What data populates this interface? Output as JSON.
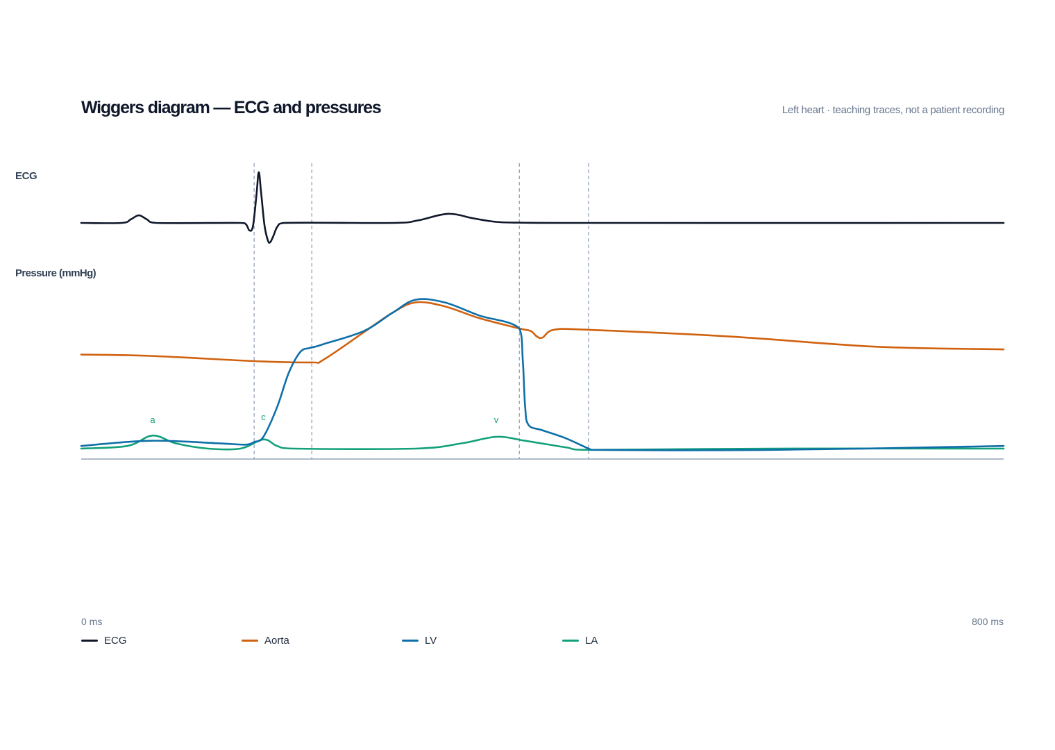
{
  "header": {
    "title": "Wiggers diagram — ECG and pressures",
    "subtitle": "Left heart · teaching traces, not a patient recording"
  },
  "chart_data": {
    "type": "line",
    "panels": [
      {
        "name": "ecg",
        "label": "ECG"
      },
      {
        "name": "pressure",
        "label": "Pressure (mmHg)"
      }
    ],
    "x_unit": "ms",
    "xlim": [
      0,
      800
    ],
    "x_tick_labels": [
      "0 ms",
      "800 ms"
    ],
    "grid": false,
    "legend_position": "bottom-left",
    "phase_markers_ms": [
      150,
      200,
      380,
      440
    ],
    "wave_annotations": [
      {
        "label": "a",
        "x": 62
      },
      {
        "label": "c",
        "x": 158
      },
      {
        "label": "v",
        "x": 360
      }
    ],
    "ecg_ylim": [
      -0.4,
      1.0
    ],
    "pressure_ylim": [
      0,
      130
    ],
    "series": [
      {
        "name": "ECG",
        "color": "#0f172a",
        "panel": "ecg",
        "points": [
          [
            0,
            0
          ],
          [
            35,
            0
          ],
          [
            43,
            0.07
          ],
          [
            50,
            0.15
          ],
          [
            57,
            0.07
          ],
          [
            65,
            0
          ],
          [
            138,
            0
          ],
          [
            143,
            -0.03
          ],
          [
            146,
            -0.15
          ],
          [
            149,
            -0.06
          ],
          [
            152,
            0.55
          ],
          [
            154,
            1.0
          ],
          [
            156,
            0.6
          ],
          [
            159,
            -0.05
          ],
          [
            162,
            -0.35
          ],
          [
            164,
            -0.38
          ],
          [
            167,
            -0.24
          ],
          [
            170,
            -0.08
          ],
          [
            176,
            0
          ],
          [
            270,
            0
          ],
          [
            292,
            0.05
          ],
          [
            318,
            0.18
          ],
          [
            340,
            0.09
          ],
          [
            360,
            0.02
          ],
          [
            380,
            0.005
          ],
          [
            420,
            0
          ],
          [
            800,
            0
          ]
        ]
      },
      {
        "name": "Aorta",
        "color": "#d0620f",
        "panel": "pressure",
        "points": [
          [
            0,
            80
          ],
          [
            60,
            79
          ],
          [
            150,
            75
          ],
          [
            200,
            74
          ],
          [
            210,
            76
          ],
          [
            245,
            97
          ],
          [
            270,
            112
          ],
          [
            290,
            120
          ],
          [
            315,
            117
          ],
          [
            345,
            108
          ],
          [
            380,
            100
          ],
          [
            390,
            98
          ],
          [
            395,
            94
          ],
          [
            400,
            93
          ],
          [
            410,
            99
          ],
          [
            440,
            99
          ],
          [
            560,
            94
          ],
          [
            690,
            86
          ],
          [
            800,
            84
          ]
        ]
      },
      {
        "name": "LV",
        "color": "#0e6fa8",
        "panel": "pressure",
        "points": [
          [
            0,
            10
          ],
          [
            60,
            14
          ],
          [
            120,
            12
          ],
          [
            142,
            11
          ],
          [
            150,
            13
          ],
          [
            158,
            17
          ],
          [
            170,
            40
          ],
          [
            180,
            66
          ],
          [
            190,
            82
          ],
          [
            198,
            85
          ],
          [
            203,
            86
          ],
          [
            210,
            88
          ],
          [
            245,
            98
          ],
          [
            270,
            112
          ],
          [
            290,
            122
          ],
          [
            315,
            120
          ],
          [
            345,
            110
          ],
          [
            380,
            100
          ],
          [
            383,
            75
          ],
          [
            385,
            40
          ],
          [
            388,
            26
          ],
          [
            400,
            22
          ],
          [
            420,
            16
          ],
          [
            440,
            8
          ],
          [
            445,
            7
          ],
          [
            600,
            7
          ],
          [
            800,
            10
          ]
        ]
      },
      {
        "name": "LA",
        "color": "#12a07a",
        "panel": "pressure",
        "points": [
          [
            0,
            8
          ],
          [
            40,
            10
          ],
          [
            62,
            18
          ],
          [
            82,
            12
          ],
          [
            110,
            8
          ],
          [
            138,
            8
          ],
          [
            158,
            15
          ],
          [
            170,
            10
          ],
          [
            185,
            8
          ],
          [
            290,
            8
          ],
          [
            330,
            12
          ],
          [
            360,
            17
          ],
          [
            385,
            14
          ],
          [
            420,
            9
          ],
          [
            440,
            7
          ],
          [
            600,
            8
          ],
          [
            800,
            8
          ]
        ]
      }
    ]
  }
}
